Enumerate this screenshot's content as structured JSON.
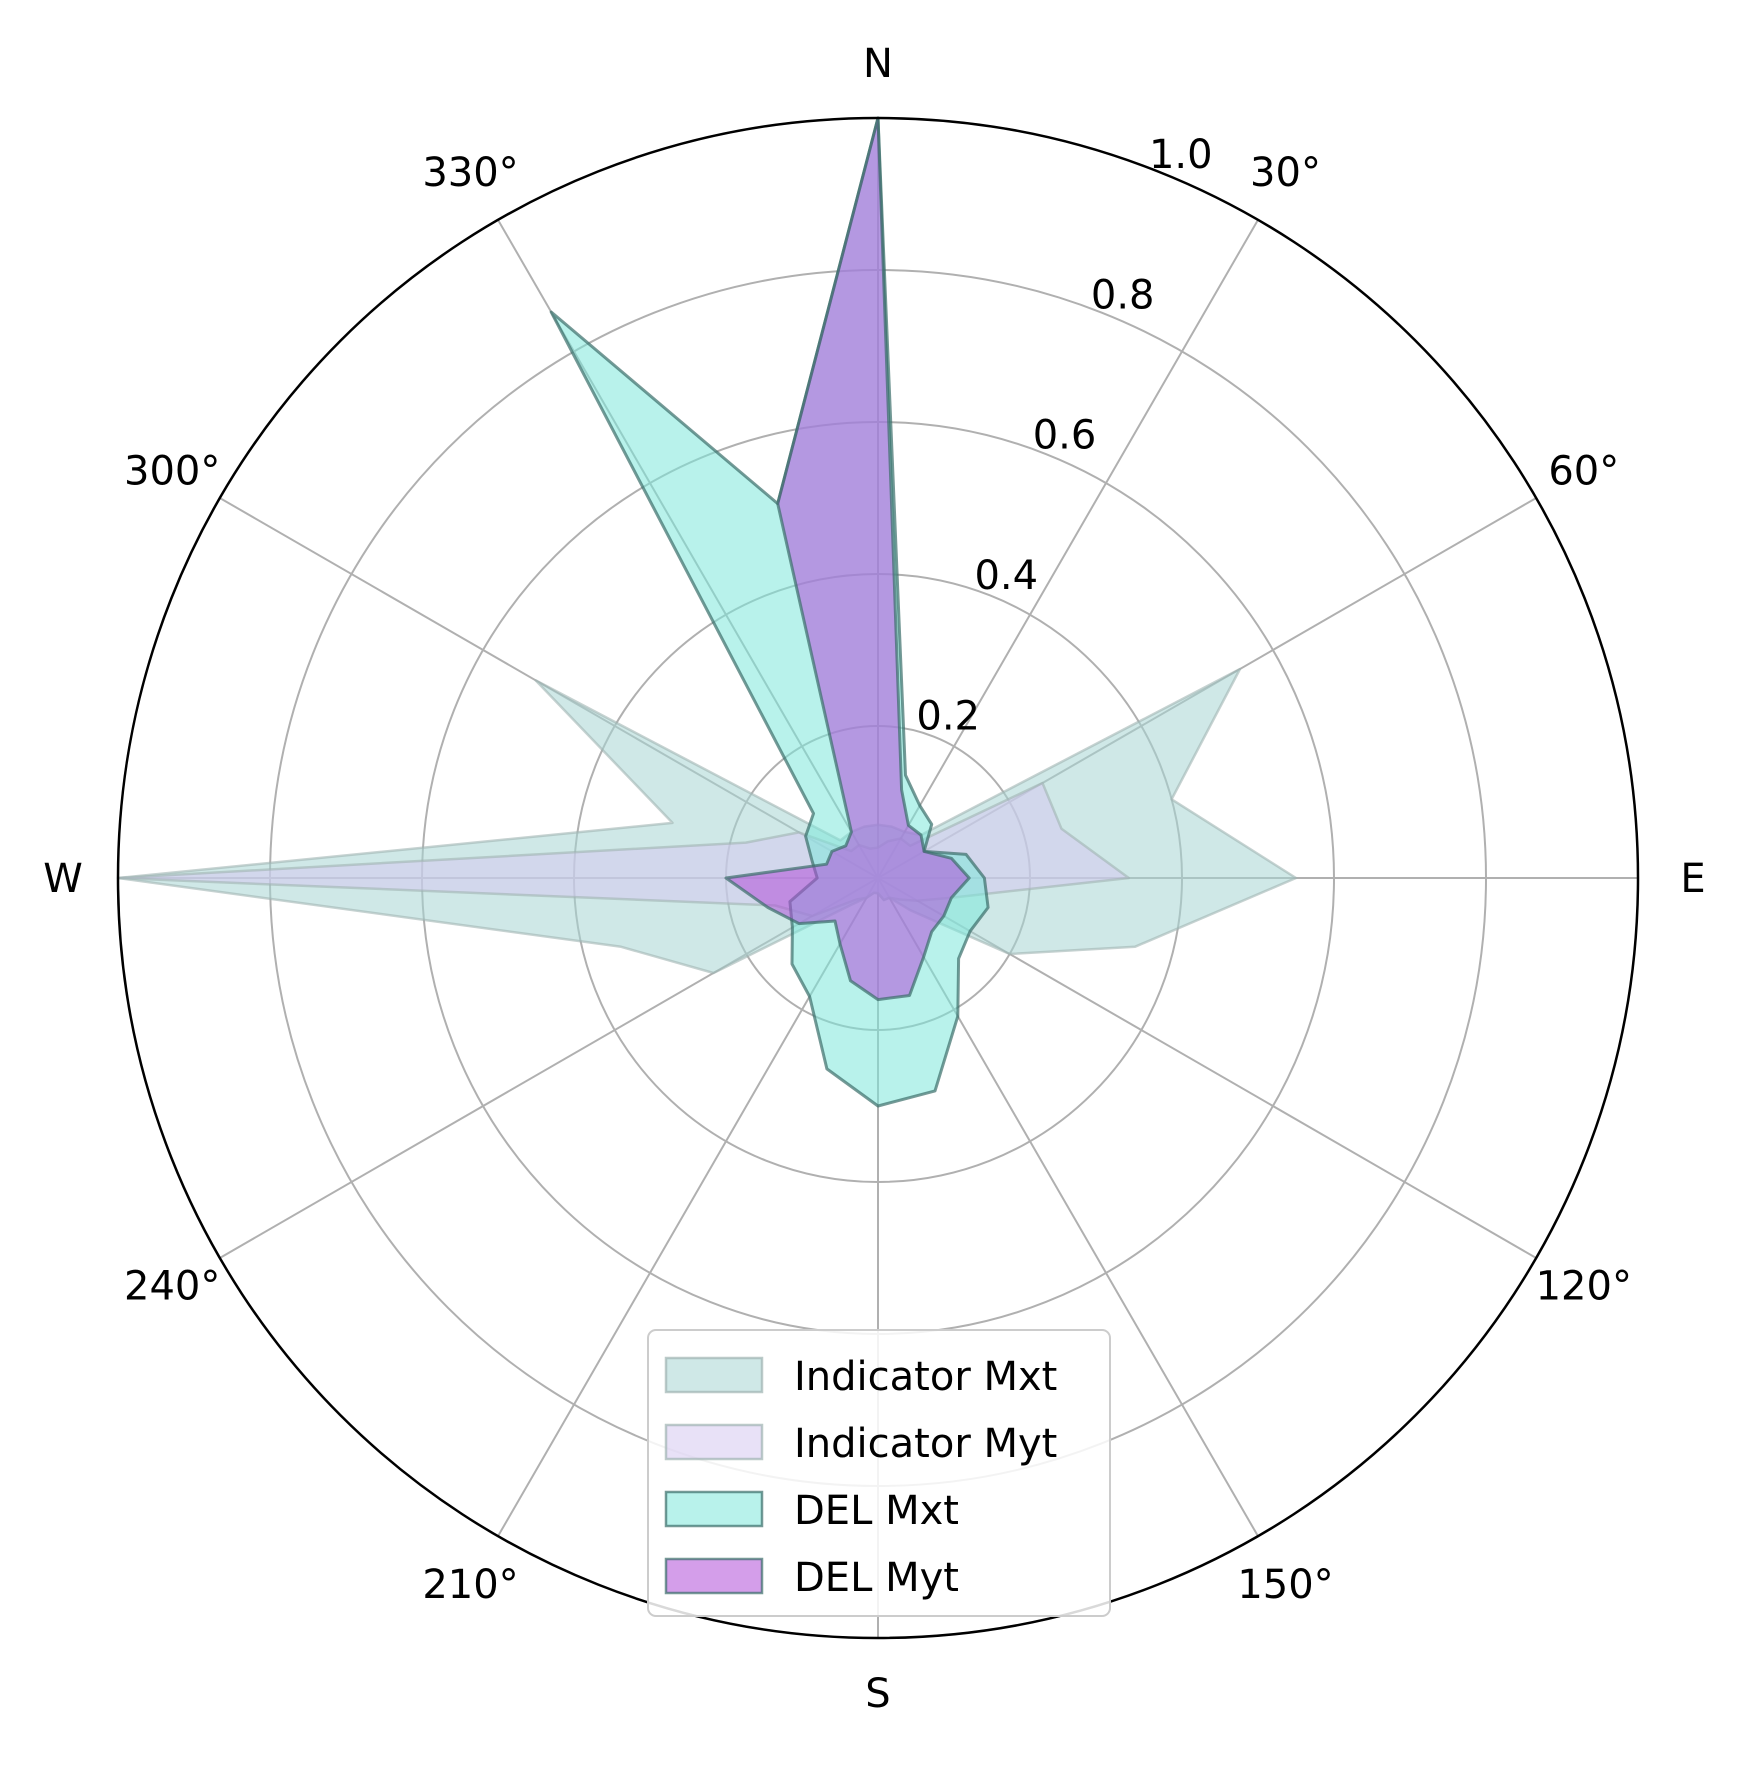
{
  "chart_data": {
    "type": "polar-area",
    "radial_ticks": [
      "0.2",
      "0.4",
      "0.6",
      "0.8",
      "1.0"
    ],
    "rlim": [
      0,
      1.0
    ],
    "angle_tick_labels": [
      "N",
      "30°",
      "60°",
      "E",
      "120°",
      "150°",
      "S",
      "210°",
      "240°",
      "W",
      "300°",
      "330°"
    ],
    "theta_direction": "clockwise",
    "theta_zero": "north",
    "grid": true,
    "legend_position": "lower center",
    "directions_deg": [
      0,
      15,
      30,
      45,
      60,
      75,
      90,
      105,
      120,
      135,
      150,
      165,
      180,
      195,
      210,
      225,
      240,
      255,
      270,
      285,
      300,
      315,
      330,
      345
    ],
    "series": [
      {
        "name": "Indicator Mxt",
        "color": "#a8d5d3",
        "values": [
          0.07,
          0.07,
          0.07,
          0.08,
          0.55,
          0.4,
          0.55,
          0.35,
          0.2,
          0.06,
          0.03,
          0.03,
          0.02,
          0.02,
          0.03,
          0.05,
          0.25,
          0.35,
          1.0,
          0.28,
          0.52,
          0.07,
          0.07,
          0.07
        ]
      },
      {
        "name": "Indicator Myt",
        "color": "#d6c8f0",
        "values": [
          0.04,
          0.05,
          0.06,
          0.06,
          0.25,
          0.25,
          0.33,
          0.1,
          0.06,
          0.04,
          0.03,
          0.03,
          0.02,
          0.02,
          0.03,
          0.04,
          0.1,
          0.14,
          1.0,
          0.18,
          0.12,
          0.05,
          0.05,
          0.04
        ]
      },
      {
        "name": "DEL Mxt",
        "color": "#7de8db",
        "values": [
          1.0,
          0.14,
          0.11,
          0.1,
          0.07,
          0.12,
          0.14,
          0.15,
          0.14,
          0.15,
          0.21,
          0.29,
          0.3,
          0.26,
          0.18,
          0.16,
          0.13,
          0.12,
          0.08,
          0.09,
          0.11,
          0.12,
          0.86,
          0.51
        ]
      },
      {
        "name": "DEL Myt",
        "color": "#b04ed8",
        "values": [
          1.0,
          0.12,
          0.08,
          0.08,
          0.07,
          0.1,
          0.12,
          0.1,
          0.1,
          0.1,
          0.12,
          0.16,
          0.16,
          0.14,
          0.1,
          0.08,
          0.12,
          0.15,
          0.2,
          0.07,
          0.07,
          0.06,
          0.07,
          0.51
        ]
      }
    ]
  }
}
